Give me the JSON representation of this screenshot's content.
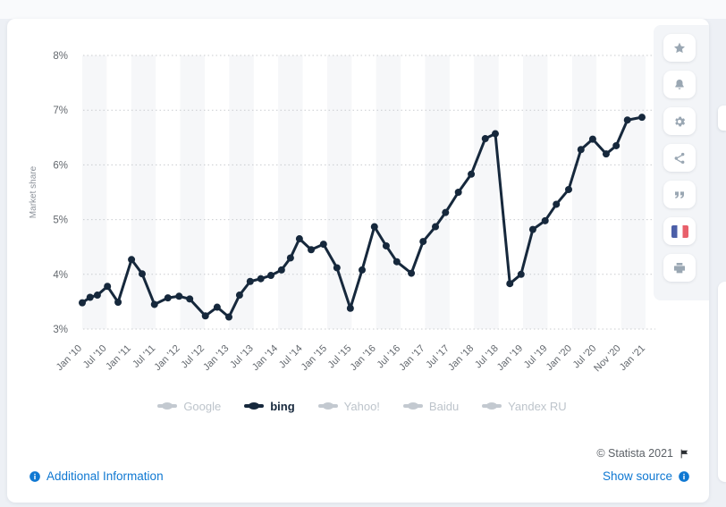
{
  "page": {
    "copyright": "© Statista 2021"
  },
  "links": {
    "additional_information": "Additional Information",
    "show_source": "Show source"
  },
  "sidebar": {
    "buttons": [
      {
        "icon": "star-icon"
      },
      {
        "icon": "bell-icon"
      },
      {
        "icon": "gear-icon"
      },
      {
        "icon": "share-icon"
      },
      {
        "icon": "quote-icon"
      },
      {
        "icon": "french-flag-icon"
      },
      {
        "icon": "print-icon"
      }
    ]
  },
  "legend": {
    "items": [
      {
        "label": "Google",
        "active": false
      },
      {
        "label": "bing",
        "active": true
      },
      {
        "label": "Yahoo!",
        "active": false
      },
      {
        "label": "Baidu",
        "active": false
      },
      {
        "label": "Yandex RU",
        "active": false
      }
    ]
  },
  "colors": {
    "series_line": "#16283c",
    "inactive_legend": "#c3c9d0",
    "link_blue": "#0f78d2",
    "gridline": "#c9cccf",
    "band_fill": "#f6f7f9",
    "tick_text": "#63686e",
    "axis_title_text": "#8d939b"
  },
  "chart_data": {
    "type": "line",
    "title": "",
    "ylabel": "Market share",
    "xlabel": "",
    "ylim": [
      3,
      8
    ],
    "y_tick_labels": [
      "3%",
      "4%",
      "5%",
      "6%",
      "7%",
      "8%"
    ],
    "x_tick_labels": [
      "Jan '10",
      "Jul '10",
      "Jan '11",
      "Jul '11",
      "Jan '12",
      "Jul '12",
      "Jan '13",
      "Jul '13",
      "Jan '14",
      "Jul '14",
      "Jan '15",
      "Jul '15",
      "Jan '16",
      "Jul '16",
      "Jan '17",
      "Jul '17",
      "Jan '18",
      "Jul '18",
      "Jan '19",
      "Jul '19",
      "Jan '20",
      "Jul '20",
      "Nov '20",
      "Jan '21"
    ],
    "grid": "dotted horizontal gridlines, alternating vertical half-year background bands",
    "legend_position": "bottom",
    "series": [
      {
        "name": "bing",
        "color": "#16283c",
        "x_fraction": [
          0.0,
          0.014,
          0.027,
          0.045,
          0.064,
          0.088,
          0.107,
          0.129,
          0.153,
          0.173,
          0.192,
          0.22,
          0.241,
          0.262,
          0.281,
          0.3,
          0.319,
          0.337,
          0.356,
          0.372,
          0.388,
          0.409,
          0.431,
          0.455,
          0.479,
          0.5,
          0.522,
          0.543,
          0.562,
          0.588,
          0.609,
          0.631,
          0.649,
          0.672,
          0.695,
          0.72,
          0.738,
          0.764,
          0.784,
          0.805,
          0.827,
          0.847,
          0.869,
          0.891,
          0.912,
          0.936,
          0.954,
          0.974,
          1.0
        ],
        "values": [
          3.48,
          3.58,
          3.62,
          3.78,
          3.49,
          4.27,
          4.01,
          3.45,
          3.57,
          3.6,
          3.55,
          3.24,
          3.4,
          3.22,
          3.62,
          3.87,
          3.92,
          3.98,
          4.08,
          4.3,
          4.65,
          4.45,
          4.55,
          4.12,
          3.38,
          4.08,
          4.87,
          4.52,
          4.23,
          4.02,
          4.6,
          4.87,
          5.13,
          5.5,
          5.83,
          6.48,
          6.57,
          3.83,
          4.0,
          4.82,
          4.98,
          5.28,
          5.55,
          6.28,
          6.47,
          6.2,
          6.35,
          6.82,
          6.87
        ]
      }
    ],
    "inactive_series_names": [
      "Google",
      "Yahoo!",
      "Baidu",
      "Yandex RU"
    ]
  }
}
